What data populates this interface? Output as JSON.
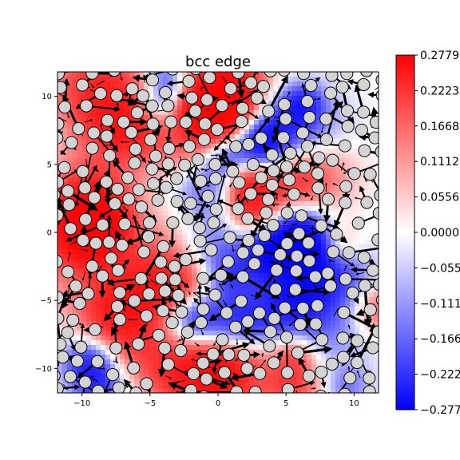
{
  "chart_data": {
    "type": "heatmap",
    "title": "bcc edge",
    "xlabel": "",
    "ylabel": "",
    "xlim": [
      -11.8,
      11.8
    ],
    "ylim": [
      -11.8,
      11.8
    ],
    "x_ticks": [
      -10,
      -5,
      0,
      5,
      10
    ],
    "y_ticks": [
      10,
      5,
      0,
      -5,
      -10
    ],
    "x_tick_labels": [
      "−10",
      "−5",
      "0",
      "5",
      "10"
    ],
    "y_tick_labels": [
      "10",
      "5",
      "0",
      "−5",
      "−10"
    ],
    "colormap": "bwr",
    "colorbar": {
      "vmin": -0.2779,
      "vmax": 0.2779,
      "ticks": [
        0.2779,
        0.2223,
        0.1668,
        0.1112,
        0.0556,
        0.0,
        -0.0556,
        -0.1112,
        -0.1668,
        -0.2223,
        -0.2779
      ],
      "tick_labels": [
        "0.2779",
        "0.2223",
        "0.1668",
        "0.1112",
        "0.0556",
        "0.0000",
        "−0.0556",
        "−0.1112",
        "−0.1668",
        "−0.2223",
        "−0.2779"
      ],
      "placement": "right"
    },
    "markers": "light gray circles with black outline (atoms)",
    "vectors": "black arrows (displacement field)",
    "colors": {
      "positive": "#ff0000",
      "zero": "#ffffff",
      "negative": "#0000ff",
      "atom_fill": "#d3d3d3"
    }
  }
}
